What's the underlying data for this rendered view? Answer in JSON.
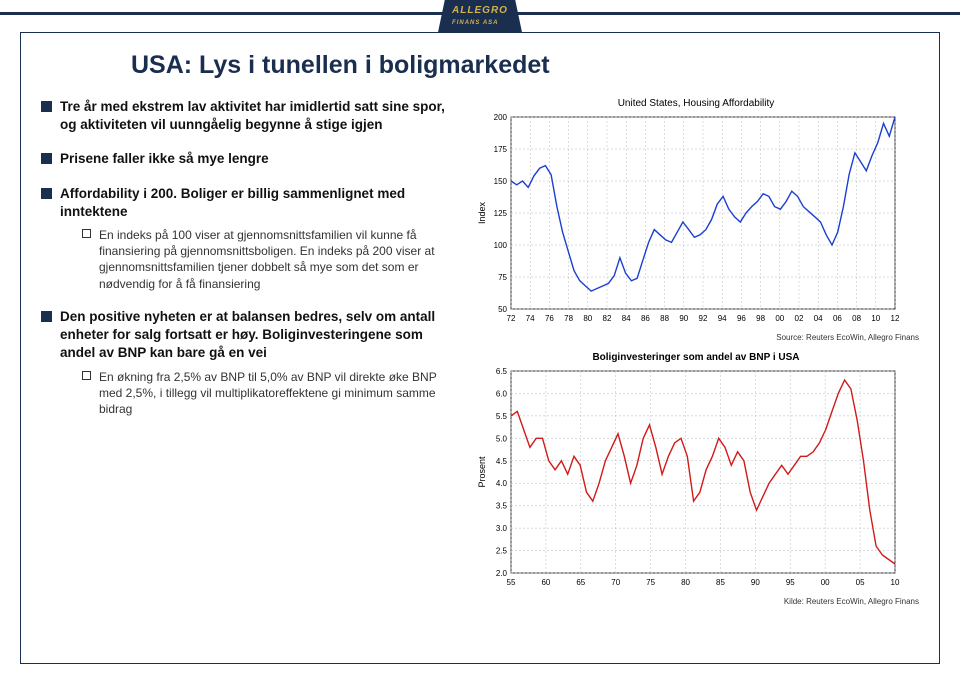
{
  "brand": "ALLEGRO",
  "brand_sub": "FINANS ASA",
  "title": "USA: Lys i tunellen i boligmarkedet",
  "bullets": [
    {
      "text": "Tre år med ekstrem lav aktivitet har imidlertid satt sine spor, og aktiviteten vil uunngåelig begynne å stige igjen"
    },
    {
      "text": "Prisene faller ikke så mye lengre"
    },
    {
      "text": "Affordability i 200. Boliger er billig sammenlignet med inntektene",
      "subs": [
        "En indeks på 100 viser at gjennomsnittsfamilien vil kunne få finansiering på gjennomsnittsboligen. En indeks på 200 viser at gjennomsnittsfamilien tjener dobbelt så mye som det som er nødvendig for å få finansiering"
      ]
    },
    {
      "text": "Den positive nyheten er at balansen bedres, selv om antall enheter for salg fortsatt er høy. Boliginvesteringene som andel av BNP kan bare gå en vei",
      "subs": [
        "En økning fra 2,5% av BNP til 5,0% av BNP vil direkte øke BNP med 2,5%, i tillegg vil multiplikatoreffektene gi minimum samme bidrag"
      ]
    }
  ],
  "chart1": {
    "type": "line",
    "title": "United States, Housing Affordability",
    "ylabel": "Index",
    "ytick_step": 25,
    "ylim": [
      50,
      200
    ],
    "xticks": [
      "72",
      "74",
      "76",
      "78",
      "80",
      "82",
      "84",
      "86",
      "88",
      "90",
      "92",
      "94",
      "96",
      "98",
      "00",
      "02",
      "04",
      "06",
      "08",
      "10",
      "12"
    ],
    "line_color": "#1a3fd1",
    "grid_color": "#b8b8b8",
    "bg": "#ffffff",
    "source": "Source: Reuters EcoWin, Allegro Finans",
    "series": [
      150,
      147,
      150,
      145,
      154,
      160,
      162,
      155,
      130,
      110,
      95,
      80,
      72,
      68,
      64,
      66,
      68,
      70,
      76,
      90,
      78,
      72,
      74,
      88,
      102,
      112,
      108,
      104,
      102,
      110,
      118,
      112,
      106,
      108,
      112,
      120,
      132,
      138,
      128,
      122,
      118,
      125,
      130,
      134,
      140,
      138,
      130,
      128,
      134,
      142,
      138,
      130,
      126,
      122,
      118,
      108,
      100,
      110,
      130,
      155,
      172,
      165,
      158,
      170,
      180,
      195,
      185,
      200
    ]
  },
  "chart2": {
    "type": "line",
    "title": "Boliginvesteringer som andel av BNP i USA",
    "ylabel": "Prosent",
    "ytick_step": 0.5,
    "ylim": [
      2.0,
      6.5
    ],
    "xticks": [
      "55",
      "60",
      "65",
      "70",
      "75",
      "80",
      "85",
      "90",
      "95",
      "00",
      "05",
      "10"
    ],
    "line_color": "#d11a1a",
    "grid_color": "#b8b8b8",
    "bg": "#ffffff",
    "source": "Kilde: Reuters EcoWin, Allegro Finans",
    "series": [
      5.5,
      5.6,
      5.2,
      4.8,
      5.0,
      5.0,
      4.5,
      4.3,
      4.5,
      4.2,
      4.6,
      4.4,
      3.8,
      3.6,
      4.0,
      4.5,
      4.8,
      5.1,
      4.6,
      4.0,
      4.4,
      5.0,
      5.3,
      4.8,
      4.2,
      4.6,
      4.9,
      5.0,
      4.6,
      3.6,
      3.8,
      4.3,
      4.6,
      5.0,
      4.8,
      4.4,
      4.7,
      4.5,
      3.8,
      3.4,
      3.7,
      4.0,
      4.2,
      4.4,
      4.2,
      4.4,
      4.6,
      4.6,
      4.7,
      4.9,
      5.2,
      5.6,
      6.0,
      6.3,
      6.1,
      5.4,
      4.5,
      3.4,
      2.6,
      2.4,
      2.3,
      2.2
    ]
  }
}
